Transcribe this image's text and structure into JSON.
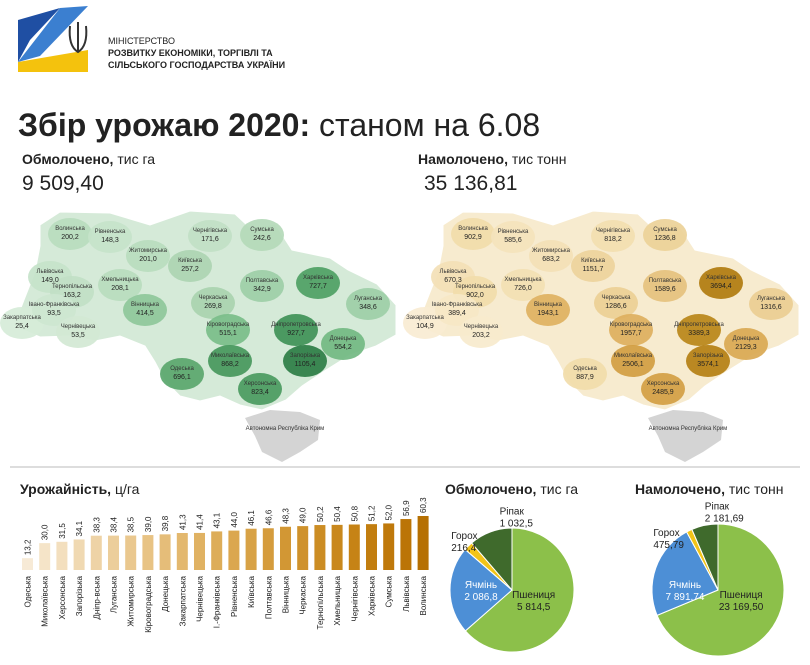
{
  "header": {
    "ministry": [
      "МІНІСТЕРСТВО",
      "РОЗВИТКУ ЕКОНОМІКИ, ТОРГІВЛІ ТА",
      "СІЛЬСЬКОГО ГОСПОДАРСТВА УКРАЇНИ"
    ],
    "title": "Збір урожаю 2020:",
    "subtitle": "станом на 6.08"
  },
  "stats": [
    {
      "label": "Обмолочено,",
      "unit": "тис га",
      "value": "9 509,40"
    },
    {
      "label": "Намолочено,",
      "unit": "тис тонн",
      "value": "35 136,81"
    }
  ],
  "maps": [
    {
      "crimea": "Автономна Республіка Крим",
      "regions": [
        {
          "name": "Волинська",
          "value": "200,2",
          "color": "#b9dcbe"
        },
        {
          "name": "Рівненська",
          "value": "148,3",
          "color": "#c6e3ca"
        },
        {
          "name": "Житомирська",
          "value": "201,0",
          "color": "#b9dcbe"
        },
        {
          "name": "Чернігівська",
          "value": "171,6",
          "color": "#c1e0c5"
        },
        {
          "name": "Сумська",
          "value": "242,6",
          "color": "#b4d9b9"
        },
        {
          "name": "Київська",
          "value": "257,2",
          "color": "#acd4b2"
        },
        {
          "name": "Львівська",
          "value": "149,0",
          "color": "#c6e3ca"
        },
        {
          "name": "Тернопільська",
          "value": "163,2",
          "color": "#c1e0c5"
        },
        {
          "name": "Хмельницька",
          "value": "208,1",
          "color": "#b9dcbe"
        },
        {
          "name": "Вінницька",
          "value": "414,5",
          "color": "#8ec79a"
        },
        {
          "name": "Полтавська",
          "value": "342,9",
          "color": "#9dcea7"
        },
        {
          "name": "Харківська",
          "value": "727,7",
          "color": "#4e9f64"
        },
        {
          "name": "Луганська",
          "value": "348,6",
          "color": "#9dcea7"
        },
        {
          "name": "Закарпатська",
          "value": "25,4",
          "color": "#d6ebd8"
        },
        {
          "name": "Івано-Франківська",
          "value": "93,5",
          "color": "#cde6d0"
        },
        {
          "name": "Чернівецька",
          "value": "53,5",
          "color": "#d2e8d4"
        },
        {
          "name": "Черкаська",
          "value": "269,8",
          "color": "#a9d2af"
        },
        {
          "name": "Кіровоградська",
          "value": "515,1",
          "color": "#7abd89"
        },
        {
          "name": "Дніпропетровська",
          "value": "927,7",
          "color": "#3f9157"
        },
        {
          "name": "Донецька",
          "value": "554,2",
          "color": "#72b882"
        },
        {
          "name": "Одеська",
          "value": "696,1",
          "color": "#5aa66d"
        },
        {
          "name": "Миколаївська",
          "value": "868,2",
          "color": "#46975c"
        },
        {
          "name": "Запорізька",
          "value": "1105,4",
          "color": "#2d7d45"
        },
        {
          "name": "Херсонська",
          "value": "823,4",
          "color": "#4a9a5f"
        }
      ]
    },
    {
      "crimea": "Автономна Республіка Крим",
      "regions": [
        {
          "name": "Волинська",
          "value": "902,9",
          "color": "#f1dcaa"
        },
        {
          "name": "Рівненська",
          "value": "585,6",
          "color": "#f4e3bc"
        },
        {
          "name": "Житомирська",
          "value": "683,2",
          "color": "#f3e0b6"
        },
        {
          "name": "Чернігівська",
          "value": "818,2",
          "color": "#f2deb0"
        },
        {
          "name": "Сумська",
          "value": "1236,8",
          "color": "#ecd198"
        },
        {
          "name": "Київська",
          "value": "1151,7",
          "color": "#edd39c"
        },
        {
          "name": "Львівська",
          "value": "670,3",
          "color": "#f3e0b6"
        },
        {
          "name": "Тернопільська",
          "value": "902,0",
          "color": "#f1dcaa"
        },
        {
          "name": "Хмельницька",
          "value": "726,0",
          "color": "#f2dfb3"
        },
        {
          "name": "Вінницька",
          "value": "1943,1",
          "color": "#deb161"
        },
        {
          "name": "Полтавська",
          "value": "1589,6",
          "color": "#e5c17e"
        },
        {
          "name": "Харківська",
          "value": "3694,4",
          "color": "#b07b0f"
        },
        {
          "name": "Луганська",
          "value": "1316,6",
          "color": "#eacd92"
        },
        {
          "name": "Закарпатська",
          "value": "104,9",
          "color": "#f8ecd2"
        },
        {
          "name": "Івано-Франківська",
          "value": "389,4",
          "color": "#f6e7c6"
        },
        {
          "name": "Чернівецька",
          "value": "203,2",
          "color": "#f7eacd"
        },
        {
          "name": "Черкаська",
          "value": "1286,6",
          "color": "#ebcf95"
        },
        {
          "name": "Кіровоградська",
          "value": "1957,7",
          "color": "#ddaf5e"
        },
        {
          "name": "Дніпропетровська",
          "value": "3389,3",
          "color": "#b98519"
        },
        {
          "name": "Донецька",
          "value": "2129,3",
          "color": "#d9a853"
        },
        {
          "name": "Одеська",
          "value": "887,9",
          "color": "#f1dcaa"
        },
        {
          "name": "Миколаївська",
          "value": "2506,1",
          "color": "#d19d42"
        },
        {
          "name": "Запорізька",
          "value": "3574,1",
          "color": "#b47f13"
        },
        {
          "name": "Херсонська",
          "value": "2485,9",
          "color": "#d29e44"
        }
      ]
    }
  ],
  "chart_data": [
    {
      "type": "bar",
      "title": "Урожайність,",
      "unit": "ц/га",
      "categories": [
        "Одеська",
        "Миколаївська",
        "Херсонська",
        "Запорізька",
        "Дніпр-вська",
        "Луганська",
        "Житомирська",
        "Кіровоградська",
        "Донецька",
        "Закарпатська",
        "Чернівецька",
        "І.-Франківська",
        "Рівненська",
        "Київська",
        "Полтавська",
        "Вінницька",
        "Черкаська",
        "Тернопільська",
        "Хмельницька",
        "Чернігівська",
        "Харківська",
        "Сумська",
        "Львівська",
        "Волинська"
      ],
      "values": [
        13.2,
        30.0,
        31.5,
        34.1,
        38.3,
        38.4,
        38.5,
        39.0,
        39.8,
        41.3,
        41.4,
        43.1,
        44.0,
        46.1,
        46.6,
        48.3,
        49.0,
        50.2,
        50.4,
        50.8,
        51.2,
        52.0,
        56.9,
        60.3
      ],
      "value_labels": [
        "13,2",
        "30,0",
        "31,5",
        "34,1",
        "38,3",
        "38,4",
        "38,5",
        "39,0",
        "39,8",
        "41,3",
        "41,4",
        "43,1",
        "44,0",
        "46,1",
        "46,6",
        "48,3",
        "49,0",
        "50,2",
        "50,4",
        "50,8",
        "51,2",
        "52,0",
        "56,9",
        "60,3"
      ],
      "colors": [
        "#f7ead6",
        "#f5e4c8",
        "#f3dfbe",
        "#f0d9b2",
        "#eed3a6",
        "#ecce9b",
        "#eac88f",
        "#e8c384",
        "#e5bd79",
        "#e3b86e",
        "#e0b263",
        "#ddad59",
        "#dba74f",
        "#d8a246",
        "#d59c3d",
        "#d29734",
        "#cf922c",
        "#cc8d24",
        "#c9881d",
        "#c68316",
        "#c27e10",
        "#bf790b",
        "#bb7406",
        "#b67002"
      ]
    },
    {
      "type": "pie",
      "title": "Обмолочено,",
      "unit": "тис га",
      "categories": [
        "Пшениця",
        "Ячмінь",
        "Горох",
        "Ріпак"
      ],
      "values": [
        5814.5,
        2086.8,
        216.4,
        1032.5
      ],
      "value_labels": [
        "5 814,5",
        "2 086,8",
        "216,4",
        "1 032,5"
      ],
      "colors": [
        "#8cc04a",
        "#4d8fd6",
        "#f2c418",
        "#3f6a2c"
      ]
    },
    {
      "type": "pie",
      "title": "Намолочено,",
      "unit": "тис тонн",
      "categories": [
        "Пшениця",
        "Ячмінь",
        "Горох",
        "Ріпак"
      ],
      "values": [
        23169.5,
        7891.74,
        475.79,
        2181.69
      ],
      "value_labels": [
        "23 169,50",
        "7 891,74",
        "475,79",
        "2 181,69"
      ],
      "colors": [
        "#8cc04a",
        "#4d8fd6",
        "#f2c418",
        "#3f6a2c"
      ]
    }
  ]
}
